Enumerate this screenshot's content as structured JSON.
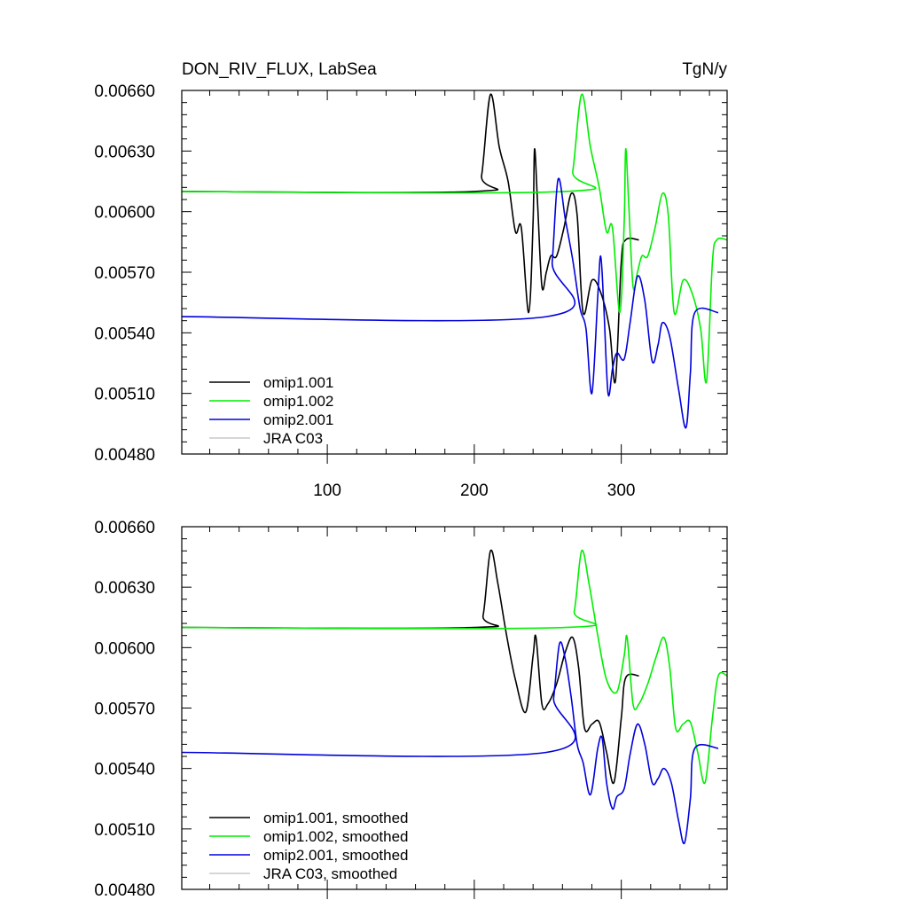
{
  "chart_data": [
    {
      "type": "line",
      "title": "DON_RIV_FLUX, LabSea",
      "units": "TgN/y",
      "xlim": [
        1,
        372
      ],
      "ylim": [
        0.0048,
        0.0066
      ],
      "x_ticks": [
        100,
        200,
        300
      ],
      "y_ticks": [
        "0.00480",
        "0.00510",
        "0.00540",
        "0.00570",
        "0.00600",
        "0.00630",
        "0.00660"
      ],
      "legend_position": "bottom-left",
      "series": [
        {
          "name": "omip1.001",
          "color": "#000000",
          "points": [
            [
              1,
              0.0061
            ],
            [
              200,
              0.0061
            ],
            [
              205,
              0.00618
            ],
            [
              211,
              0.00658
            ],
            [
              217,
              0.00632
            ],
            [
              223,
              0.00615
            ],
            [
              228,
              0.0059
            ],
            [
              232,
              0.00592
            ],
            [
              237,
              0.0055
            ],
            [
              240,
              0.00595
            ],
            [
              241,
              0.00631
            ],
            [
              243,
              0.00605
            ],
            [
              246,
              0.00563
            ],
            [
              249,
              0.0057
            ],
            [
              252,
              0.00578
            ],
            [
              256,
              0.00578
            ],
            [
              261,
              0.00592
            ],
            [
              266,
              0.00609
            ],
            [
              270,
              0.00598
            ],
            [
              274,
              0.0055
            ],
            [
              280,
              0.00566
            ],
            [
              286,
              0.0056
            ],
            [
              292,
              0.00542
            ],
            [
              296,
              0.00516
            ],
            [
              300,
              0.00575
            ],
            [
              303,
              0.00586
            ],
            [
              312,
              0.00586
            ]
          ]
        },
        {
          "name": "omip1.002",
          "color": "#00ee00",
          "points": [
            [
              1,
              0.0061
            ],
            [
              262,
              0.0061
            ],
            [
              267,
              0.0062
            ],
            [
              273,
              0.00658
            ],
            [
              279,
              0.00632
            ],
            [
              285,
              0.00612
            ],
            [
              290,
              0.0059
            ],
            [
              294,
              0.00592
            ],
            [
              299,
              0.0055
            ],
            [
              302,
              0.00595
            ],
            [
              303,
              0.00631
            ],
            [
              305,
              0.00605
            ],
            [
              308,
              0.00563
            ],
            [
              311,
              0.0057
            ],
            [
              314,
              0.00578
            ],
            [
              318,
              0.00578
            ],
            [
              323,
              0.00592
            ],
            [
              328,
              0.00609
            ],
            [
              332,
              0.00598
            ],
            [
              336,
              0.0055
            ],
            [
              342,
              0.00566
            ],
            [
              348,
              0.0056
            ],
            [
              354,
              0.00542
            ],
            [
              358,
              0.00516
            ],
            [
              362,
              0.00575
            ],
            [
              365,
              0.00586
            ],
            [
              372,
              0.00586
            ]
          ]
        },
        {
          "name": "omip2.001",
          "color": "#0000dd",
          "points": [
            [
              1,
              0.00548
            ],
            [
              249,
              0.00548
            ],
            [
              253,
              0.00575
            ],
            [
              257,
              0.00616
            ],
            [
              262,
              0.00596
            ],
            [
              267,
              0.00576
            ],
            [
              272,
              0.00552
            ],
            [
              276,
              0.00542
            ],
            [
              280,
              0.0051
            ],
            [
              284,
              0.00558
            ],
            [
              286,
              0.00578
            ],
            [
              288,
              0.00555
            ],
            [
              291,
              0.0051
            ],
            [
              294,
              0.00522
            ],
            [
              297,
              0.0053
            ],
            [
              302,
              0.00527
            ],
            [
              306,
              0.00545
            ],
            [
              311,
              0.00568
            ],
            [
              316,
              0.00556
            ],
            [
              321,
              0.00526
            ],
            [
              325,
              0.00534
            ],
            [
              328,
              0.00545
            ],
            [
              333,
              0.00538
            ],
            [
              339,
              0.00512
            ],
            [
              344,
              0.00493
            ],
            [
              347,
              0.0052
            ],
            [
              350,
              0.0055
            ],
            [
              366,
              0.0055
            ]
          ]
        },
        {
          "name": "JRA C03",
          "color": "#c8c8c8",
          "points": []
        }
      ]
    },
    {
      "type": "line",
      "xlim": [
        1,
        372
      ],
      "ylim": [
        0.0048,
        0.0066
      ],
      "x_ticks": [
        100,
        200,
        300
      ],
      "y_ticks": [
        "0.00480",
        "0.00510",
        "0.00540",
        "0.00570",
        "0.00600",
        "0.00630",
        "0.00660"
      ],
      "legend_position": "bottom-left",
      "series": [
        {
          "name": "omip1.001, smoothed",
          "color": "#000000",
          "points": [
            [
              1,
              0.0061
            ],
            [
              200,
              0.0061
            ],
            [
              206,
              0.00616
            ],
            [
              211,
              0.00648
            ],
            [
              216,
              0.00632
            ],
            [
              222,
              0.00606
            ],
            [
              228,
              0.00584
            ],
            [
              235,
              0.00568
            ],
            [
              240,
              0.00596
            ],
            [
              242,
              0.00605
            ],
            [
              246,
              0.00572
            ],
            [
              250,
              0.00572
            ],
            [
              256,
              0.00582
            ],
            [
              262,
              0.00598
            ],
            [
              267,
              0.00605
            ],
            [
              271,
              0.0059
            ],
            [
              275,
              0.0056
            ],
            [
              280,
              0.00562
            ],
            [
              285,
              0.00563
            ],
            [
              290,
              0.00548
            ],
            [
              295,
              0.00533
            ],
            [
              300,
              0.00565
            ],
            [
              303,
              0.00585
            ],
            [
              312,
              0.00586
            ]
          ]
        },
        {
          "name": "omip1.002, smoothed",
          "color": "#00ee00",
          "points": [
            [
              1,
              0.0061
            ],
            [
              262,
              0.0061
            ],
            [
              268,
              0.00618
            ],
            [
              273,
              0.00648
            ],
            [
              278,
              0.00632
            ],
            [
              284,
              0.00606
            ],
            [
              290,
              0.00584
            ],
            [
              297,
              0.00578
            ],
            [
              302,
              0.00596
            ],
            [
              304,
              0.00605
            ],
            [
              308,
              0.00572
            ],
            [
              312,
              0.00572
            ],
            [
              318,
              0.00582
            ],
            [
              324,
              0.00596
            ],
            [
              329,
              0.00605
            ],
            [
              333,
              0.0059
            ],
            [
              337,
              0.0056
            ],
            [
              342,
              0.00562
            ],
            [
              347,
              0.00563
            ],
            [
              352,
              0.00548
            ],
            [
              357,
              0.00533
            ],
            [
              362,
              0.00565
            ],
            [
              366,
              0.00586
            ],
            [
              372,
              0.00586
            ]
          ]
        },
        {
          "name": "omip2.001, smoothed",
          "color": "#0000dd",
          "points": [
            [
              1,
              0.00548
            ],
            [
              249,
              0.00548
            ],
            [
              254,
              0.00575
            ],
            [
              258,
              0.00602
            ],
            [
              262,
              0.00594
            ],
            [
              266,
              0.00575
            ],
            [
              270,
              0.00552
            ],
            [
              274,
              0.00543
            ],
            [
              279,
              0.00527
            ],
            [
              284,
              0.0055
            ],
            [
              287,
              0.00555
            ],
            [
              290,
              0.00533
            ],
            [
              294,
              0.0052
            ],
            [
              297,
              0.00526
            ],
            [
              302,
              0.0053
            ],
            [
              306,
              0.00547
            ],
            [
              311,
              0.00562
            ],
            [
              316,
              0.00552
            ],
            [
              321,
              0.00533
            ],
            [
              325,
              0.00535
            ],
            [
              329,
              0.0054
            ],
            [
              334,
              0.00533
            ],
            [
              339,
              0.00514
            ],
            [
              343,
              0.00503
            ],
            [
              347,
              0.00525
            ],
            [
              350,
              0.0055
            ],
            [
              366,
              0.0055
            ]
          ]
        },
        {
          "name": "JRA C03, smoothed",
          "color": "#c8c8c8",
          "points": []
        }
      ]
    }
  ]
}
